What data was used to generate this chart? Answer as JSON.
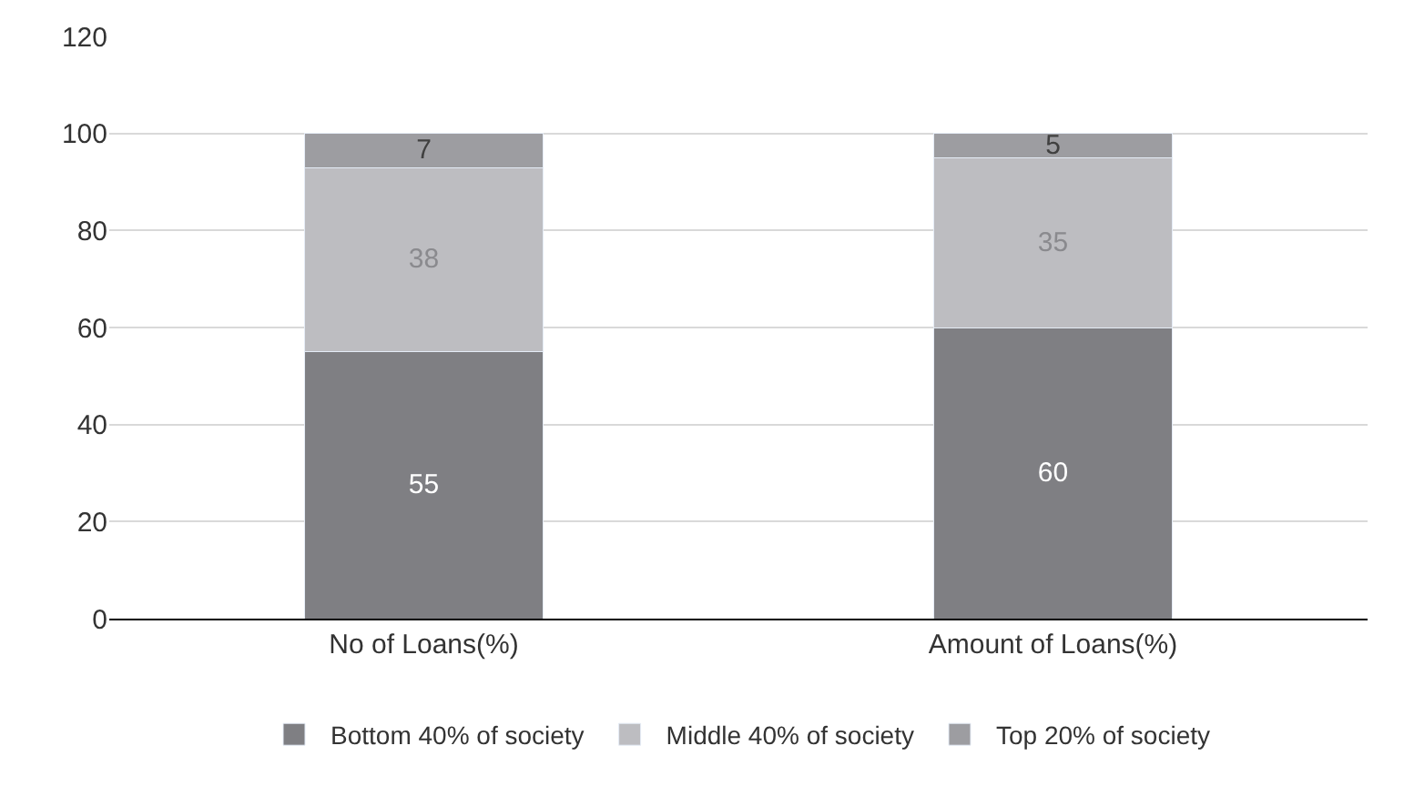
{
  "chart_data": {
    "type": "bar",
    "stacked": true,
    "categories": [
      "No of Loans(%)",
      "Amount of Loans(%)"
    ],
    "series": [
      {
        "name": "Bottom 40% of society",
        "color": "#7f7f83",
        "values": [
          55,
          60
        ]
      },
      {
        "name": "Middle 40% of society",
        "color": "#bdbdc1",
        "values": [
          38,
          35
        ]
      },
      {
        "name": "Top 20% of society",
        "color": "#9d9da1",
        "values": [
          7,
          5
        ]
      }
    ],
    "ylim": [
      0,
      120
    ],
    "yticks": [
      0,
      20,
      40,
      60,
      80,
      100,
      120
    ],
    "grid": "y",
    "legend": "bottom",
    "data_labels": true
  }
}
